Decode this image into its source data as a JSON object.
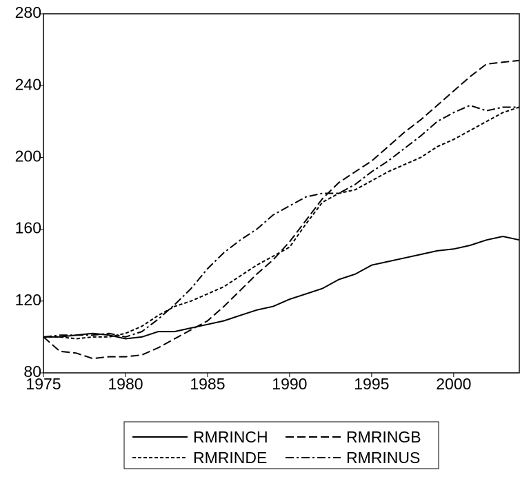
{
  "chart_data": {
    "type": "line",
    "x": [
      1975,
      1976,
      1977,
      1978,
      1979,
      1980,
      1981,
      1982,
      1983,
      1984,
      1985,
      1986,
      1987,
      1988,
      1989,
      1990,
      1991,
      1992,
      1993,
      1994,
      1995,
      1996,
      1997,
      1998,
      1999,
      2000,
      2001,
      2002,
      2003,
      2004
    ],
    "series": [
      {
        "name": "RMRINCH",
        "color": "#000000",
        "dash": "none",
        "values": [
          100,
          100,
          101,
          102,
          101,
          99,
          100,
          103,
          103,
          105,
          107,
          109,
          112,
          115,
          117,
          121,
          124,
          127,
          132,
          135,
          140,
          142,
          144,
          146,
          148,
          149,
          151,
          154,
          156,
          154
        ]
      },
      {
        "name": "RMRINGB",
        "color": "#000000",
        "dash": "12 5",
        "values": [
          100,
          92,
          91,
          88,
          89,
          89,
          90,
          94,
          99,
          104,
          109,
          117,
          126,
          135,
          143,
          153,
          165,
          177,
          186,
          192,
          198,
          206,
          214,
          221,
          229,
          237,
          245,
          252,
          253,
          254
        ]
      },
      {
        "name": "RMRINDE",
        "color": "#000000",
        "dash": "5 3",
        "values": [
          100,
          100,
          99,
          100,
          100,
          102,
          106,
          112,
          117,
          120,
          124,
          128,
          134,
          140,
          145,
          150,
          163,
          175,
          180,
          182,
          187,
          192,
          196,
          200,
          206,
          210,
          215,
          220,
          225,
          228
        ]
      },
      {
        "name": "RMRINUS",
        "color": "#000000",
        "dash": "12 4 3 4",
        "values": [
          100,
          101,
          101,
          101,
          102,
          100,
          103,
          110,
          118,
          127,
          138,
          147,
          154,
          160,
          168,
          173,
          178,
          180,
          180,
          185,
          192,
          198,
          205,
          212,
          220,
          225,
          229,
          226,
          228,
          228
        ]
      }
    ],
    "xlim": [
      1975,
      2004
    ],
    "xticks": [
      1975,
      1980,
      1985,
      1990,
      1995,
      2000
    ],
    "ylim": [
      80,
      280
    ],
    "yticks": [
      80,
      120,
      160,
      200,
      240,
      280
    ]
  }
}
